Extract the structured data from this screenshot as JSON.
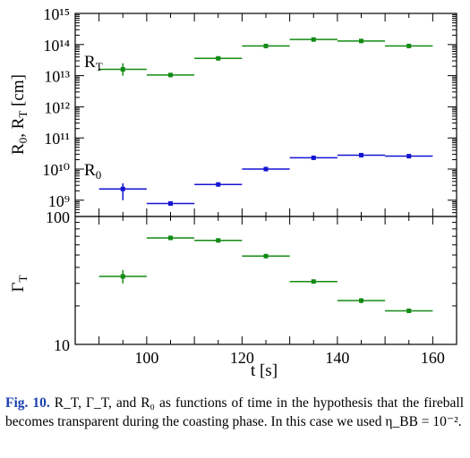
{
  "chart_data": [
    {
      "type": "scatter",
      "panel": "top",
      "ylabel": "R₀, R_T [cm]",
      "yscale": "log",
      "ylim": [
        300000000.0,
        1000000000000000.0
      ],
      "xlim": [
        85,
        165
      ],
      "y_tick_labels": [
        "10⁹",
        "10¹⁰",
        "10¹¹",
        "10¹²",
        "10¹³",
        "10¹⁴",
        "10¹⁵"
      ],
      "series": [
        {
          "name": "R_T",
          "color": "#138a13",
          "points": [
            {
              "x": 95,
              "y": 16000000000000.0,
              "xerr": 5,
              "ylo": 10000000000000.0,
              "yhi": 25000000000000.0
            },
            {
              "x": 105,
              "y": 10500000000000.0,
              "xerr": 5,
              "ylo": 10500000000000.0,
              "yhi": 10500000000000.0
            },
            {
              "x": 115,
              "y": 36000000000000.0,
              "xerr": 5,
              "ylo": 36000000000000.0,
              "yhi": 36000000000000.0
            },
            {
              "x": 125,
              "y": 90000000000000.0,
              "xerr": 5,
              "ylo": 90000000000000.0,
              "yhi": 90000000000000.0
            },
            {
              "x": 135,
              "y": 145000000000000.0,
              "xerr": 5,
              "ylo": 145000000000000.0,
              "yhi": 145000000000000.0
            },
            {
              "x": 145,
              "y": 130000000000000.0,
              "xerr": 5,
              "ylo": 115000000000000.0,
              "yhi": 145000000000000.0
            },
            {
              "x": 155,
              "y": 90000000000000.0,
              "xerr": 5,
              "ylo": 90000000000000.0,
              "yhi": 90000000000000.0
            }
          ]
        },
        {
          "name": "R₀",
          "color": "#1414d2",
          "points": [
            {
              "x": 95,
              "y": 2300000000.0,
              "xerr": 5,
              "ylo": 1000000000.0,
              "yhi": 3500000000.0
            },
            {
              "x": 105,
              "y": 780000000.0,
              "xerr": 5,
              "ylo": 780000000.0,
              "yhi": 780000000.0
            },
            {
              "x": 115,
              "y": 3200000000.0,
              "xerr": 5,
              "ylo": 3200000000.0,
              "yhi": 3200000000.0
            },
            {
              "x": 125,
              "y": 10000000000.0,
              "xerr": 5,
              "ylo": 10000000000.0,
              "yhi": 10000000000.0
            },
            {
              "x": 135,
              "y": 23000000000.0,
              "xerr": 5,
              "ylo": 23000000000.0,
              "yhi": 23000000000.0
            },
            {
              "x": 145,
              "y": 28000000000.0,
              "xerr": 5,
              "ylo": 24000000000.0,
              "yhi": 33000000000.0
            },
            {
              "x": 155,
              "y": 26000000000.0,
              "xerr": 5,
              "ylo": 26000000000.0,
              "yhi": 26000000000.0
            }
          ]
        }
      ]
    },
    {
      "type": "scatter",
      "panel": "bottom",
      "ylabel": "Γ_T",
      "yscale": "log",
      "ylim": [
        10,
        100
      ],
      "xlim": [
        85,
        165
      ],
      "xlabel": "t [s]",
      "x_ticks": [
        100,
        120,
        140,
        160
      ],
      "y_tick_labels": [
        "10",
        "100"
      ],
      "series": [
        {
          "name": "Γ_T",
          "color": "#138a13",
          "points": [
            {
              "x": 95,
              "y": 34,
              "xerr": 5,
              "ylo": 30,
              "yhi": 38
            },
            {
              "x": 105,
              "y": 68,
              "xerr": 5,
              "ylo": 66,
              "yhi": 70
            },
            {
              "x": 115,
              "y": 65,
              "xerr": 5,
              "ylo": 65,
              "yhi": 65
            },
            {
              "x": 125,
              "y": 49,
              "xerr": 5,
              "ylo": 49,
              "yhi": 49
            },
            {
              "x": 135,
              "y": 31,
              "xerr": 5,
              "ylo": 31,
              "yhi": 31
            },
            {
              "x": 145,
              "y": 22,
              "xerr": 5,
              "ylo": 21,
              "yhi": 23
            },
            {
              "x": 155,
              "y": 18.3,
              "xerr": 5,
              "ylo": 18.3,
              "yhi": 18.3
            }
          ]
        }
      ]
    }
  ],
  "caption": {
    "label": "Fig. 10.",
    "text": "R_T, Γ_T, and R₀ as functions of time in the hypothesis that the fireball becomes transparent during the coasting phase. In this case we used η_BB = 10⁻²."
  }
}
